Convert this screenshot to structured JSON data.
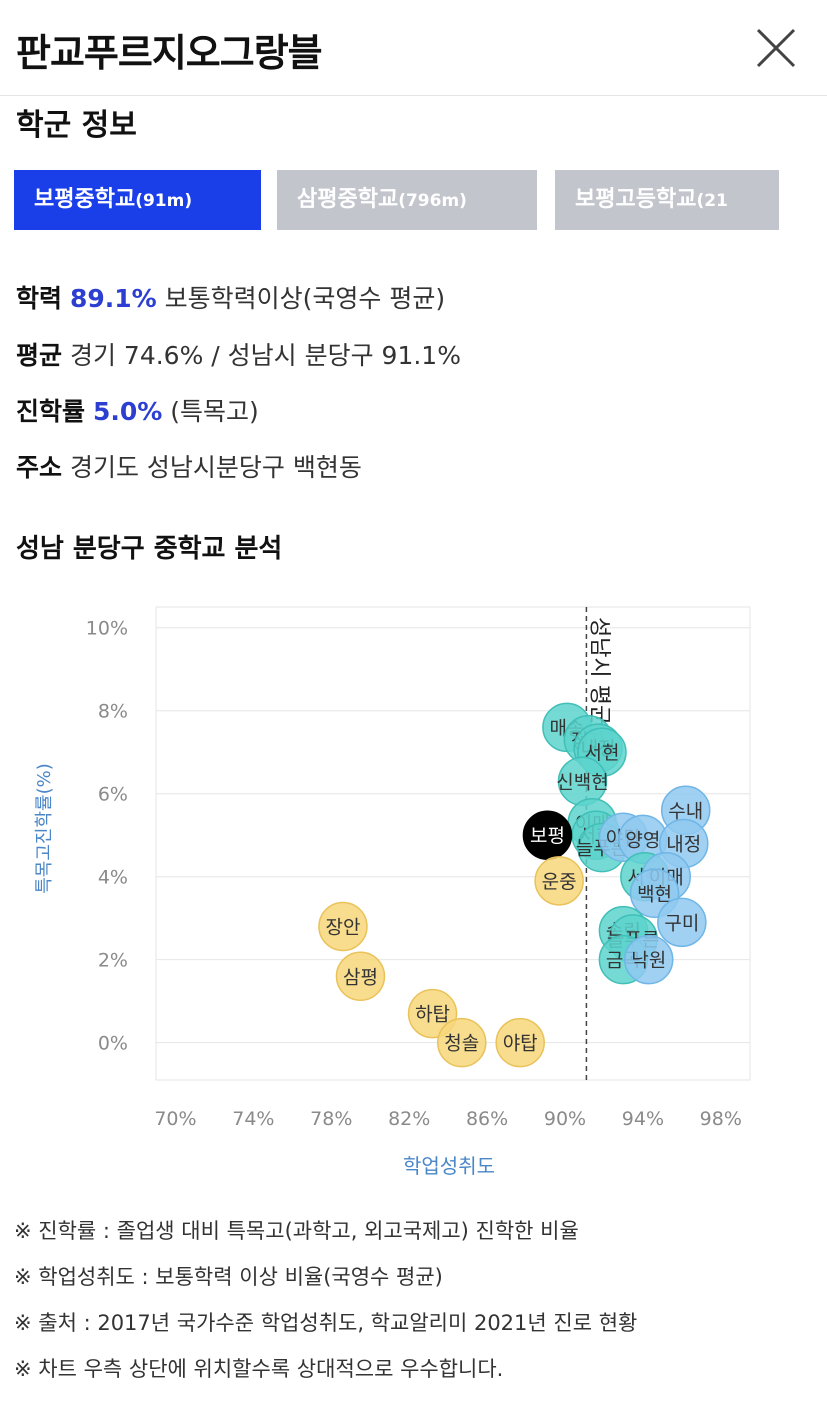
{
  "header": {
    "title": "판교푸르지오그랑블",
    "close_icon": "close-icon"
  },
  "school_info": {
    "section_title": "학군 정보",
    "tabs": [
      {
        "name": "보평중학교",
        "distance": "(91m)",
        "active": true
      },
      {
        "name": "삼평중학교",
        "distance": "(796m)",
        "active": false
      },
      {
        "name": "보평고등학교",
        "distance": "(21",
        "active": false
      }
    ],
    "achievement": {
      "label": "학력",
      "value": "89.1%",
      "desc": "보통학력이상(국영수 평균)"
    },
    "average": {
      "label": "평균",
      "text": "경기 74.6% / 성남시 분당구 91.1%"
    },
    "advancement": {
      "label": "진학률",
      "value": "5.0%",
      "desc": "(특목고)"
    },
    "address": {
      "label": "주소",
      "text": "경기도 성남시분당구 백현동"
    }
  },
  "chart_section": {
    "title": "성남 분당구 중학교 분석"
  },
  "chart_data": {
    "type": "scatter",
    "xlabel": "학업성취도",
    "ylabel": "특목고진학률(%)",
    "xlim": [
      69,
      99.5
    ],
    "ylim": [
      -0.9,
      10.5
    ],
    "xticks": [
      "70%",
      "74%",
      "78%",
      "82%",
      "86%",
      "90%",
      "94%",
      "98%"
    ],
    "xtick_values": [
      70,
      74,
      78,
      82,
      86,
      90,
      94,
      98
    ],
    "yticks": [
      "10%",
      "8%",
      "6%",
      "4%",
      "2%",
      "0%"
    ],
    "ytick_values": [
      10,
      8,
      6,
      4,
      2,
      0
    ],
    "reference_line": {
      "x": 91.1,
      "label": "성남시 평균"
    },
    "colors": {
      "yellow": "#f7d77a",
      "teal": "#5dd4cc",
      "blue": "#8fc9f0",
      "selected": "#000000"
    },
    "points": [
      {
        "label": "매송",
        "x": 90.1,
        "y": 7.6,
        "color": "teal"
      },
      {
        "label": "정자",
        "x": 91.2,
        "y": 7.3,
        "color": "teal"
      },
      {
        "label": "내정",
        "x": 91.7,
        "y": 7.1,
        "color": "teal"
      },
      {
        "label": "서현",
        "x": 91.9,
        "y": 7.0,
        "color": "teal"
      },
      {
        "label": "신백현",
        "x": 90.9,
        "y": 6.3,
        "color": "teal"
      },
      {
        "label": "이매",
        "x": 91.4,
        "y": 5.3,
        "color": "teal"
      },
      {
        "label": "서현",
        "x": 91.6,
        "y": 5.0,
        "color": "teal"
      },
      {
        "label": "보평",
        "x": 89.1,
        "y": 5.0,
        "color": "selected"
      },
      {
        "label": "늘푸른",
        "x": 91.9,
        "y": 4.7,
        "color": "teal"
      },
      {
        "label": "야탑",
        "x": 93.0,
        "y": 4.95,
        "color": "blue"
      },
      {
        "label": "양영",
        "x": 94.0,
        "y": 4.9,
        "color": "blue"
      },
      {
        "label": "수내",
        "x": 96.2,
        "y": 5.6,
        "color": "blue"
      },
      {
        "label": "내정",
        "x": 96.1,
        "y": 4.8,
        "color": "blue"
      },
      {
        "label": "서현",
        "x": 94.1,
        "y": 4.0,
        "color": "teal"
      },
      {
        "label": "이매",
        "x": 95.2,
        "y": 4.0,
        "color": "blue"
      },
      {
        "label": "백현",
        "x": 94.6,
        "y": 3.6,
        "color": "blue"
      },
      {
        "label": "구미",
        "x": 96.0,
        "y": 2.9,
        "color": "blue"
      },
      {
        "label": "송림",
        "x": 93.0,
        "y": 2.7,
        "color": "teal"
      },
      {
        "label": "늘푸른",
        "x": 93.5,
        "y": 2.5,
        "color": "teal"
      },
      {
        "label": "금곡",
        "x": 93.0,
        "y": 2.0,
        "color": "teal"
      },
      {
        "label": "낙원",
        "x": 94.3,
        "y": 2.0,
        "color": "blue"
      },
      {
        "label": "운중",
        "x": 89.7,
        "y": 3.9,
        "color": "yellow"
      },
      {
        "label": "장안",
        "x": 78.6,
        "y": 2.8,
        "color": "yellow"
      },
      {
        "label": "삼평",
        "x": 79.5,
        "y": 1.6,
        "color": "yellow"
      },
      {
        "label": "하탑",
        "x": 83.2,
        "y": 0.7,
        "color": "yellow"
      },
      {
        "label": "청솔",
        "x": 84.7,
        "y": 0.0,
        "color": "yellow"
      },
      {
        "label": "야탑",
        "x": 87.7,
        "y": 0.0,
        "color": "yellow"
      }
    ]
  },
  "notes": [
    "※ 진학률 : 졸업생 대비 특목고(과학고, 외고국제고) 진학한 비율",
    "※ 학업성취도 : 보통학력 이상 비율(국영수 평균)",
    "※ 출처 : 2017년 국가수준 학업성취도, 학교알리미 2021년 진로 현황",
    "※ 차트 우측 상단에 위치할수록 상대적으로 우수합니다."
  ]
}
